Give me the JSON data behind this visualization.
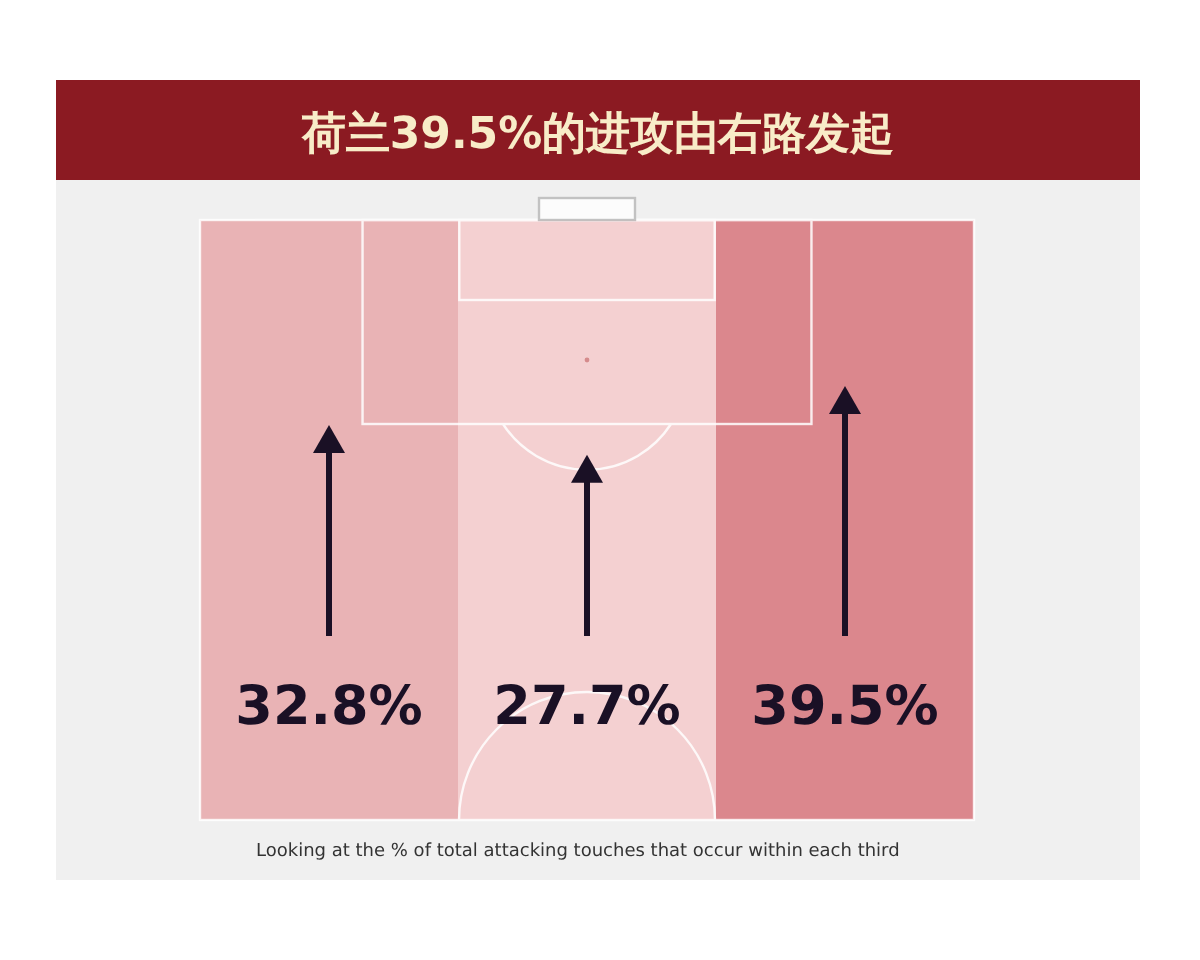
{
  "chart_data": {
    "type": "other",
    "title": "荷兰39.5%的进攻由右路发起",
    "categories": [
      null,
      null,
      null
    ],
    "values": [
      32.8,
      27.7,
      39.5
    ],
    "colors": [
      "#e9b3b5",
      "#f4d0d1",
      "#db878d"
    ],
    "value_labels": [
      "32.8%",
      "27.7%",
      "39.5%"
    ],
    "annotations": [
      "Looking at the % of total attacking touches that occur within each third"
    ]
  }
}
